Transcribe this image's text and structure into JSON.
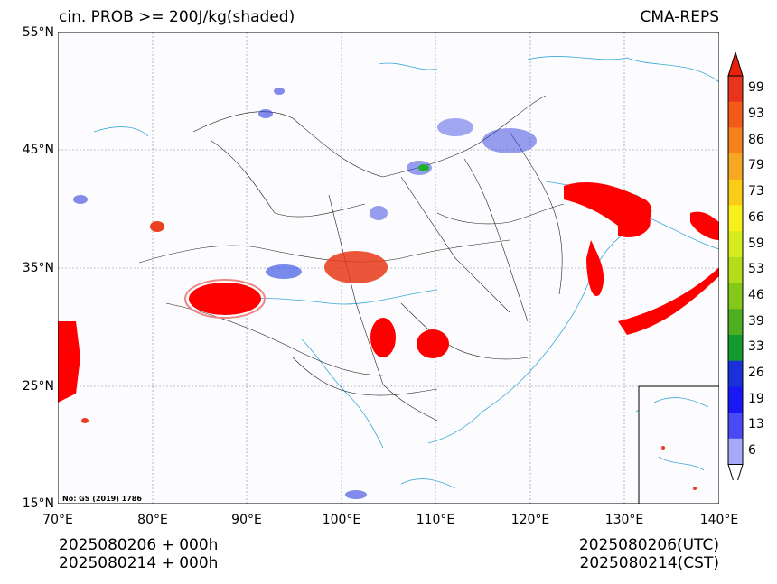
{
  "header": {
    "title_left": "cin. PROB >= 200J/kg(shaded)",
    "title_right": "CMA-REPS"
  },
  "map": {
    "lat_labels": [
      "55°N",
      "45°N",
      "35°N",
      "25°N",
      "15°N"
    ],
    "lon_labels": [
      "70°E",
      "80°E",
      "90°E",
      "100°E",
      "110°E",
      "120°E",
      "130°E",
      "140°E"
    ],
    "note": "No: GS (2019) 1786"
  },
  "colorbar": {
    "labels": [
      "99",
      "93",
      "86",
      "79",
      "73",
      "66",
      "59",
      "53",
      "46",
      "39",
      "33",
      "26",
      "19",
      "13",
      "6"
    ],
    "colors": [
      "#e8341c",
      "#f25a1a",
      "#f5801e",
      "#f7a823",
      "#f9cc1a",
      "#f8f01a",
      "#d6ec1e",
      "#b2dc1c",
      "#84c81a",
      "#4cae20",
      "#139a2e",
      "#1a30d8",
      "#1818f5",
      "#4a4af5",
      "#a8a8f8"
    ],
    "top_triangle_color": "#e8200c",
    "bottom_triangle_color": "#ffffff"
  },
  "footer": {
    "left_line1": "2025080206  +  000h",
    "left_line2": "2025080214  +  000h",
    "right_line1": "2025080206(UTC)",
    "right_line2": "2025080214(CST)"
  }
}
